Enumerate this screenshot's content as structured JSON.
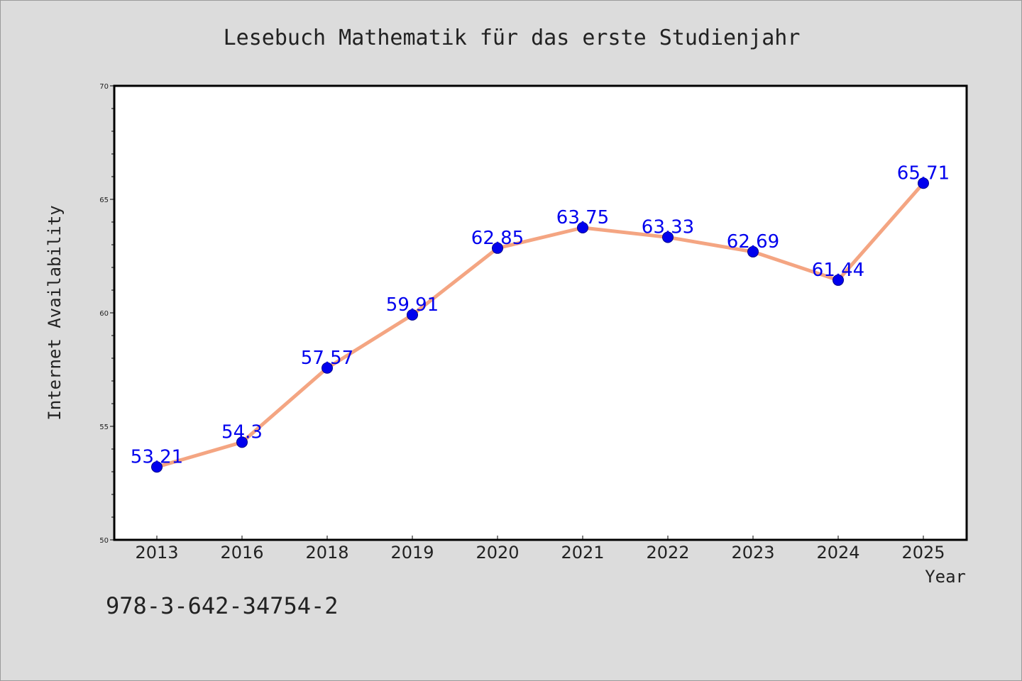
{
  "chart_data": {
    "type": "line",
    "title": "Lesebuch Mathematik für das erste Studienjahr",
    "xlabel": "Year",
    "ylabel": "Internet Availability",
    "categories": [
      "2013",
      "2016",
      "2018",
      "2019",
      "2020",
      "2021",
      "2022",
      "2023",
      "2024",
      "2025"
    ],
    "series": [
      {
        "values": [
          53.21,
          54.3,
          57.57,
          59.91,
          62.85,
          63.75,
          63.33,
          62.69,
          61.44,
          65.71
        ],
        "data_labels": [
          "53.21",
          "54.3",
          "57.57",
          "59.91",
          "62.85",
          "63.75",
          "63.33",
          "62.69",
          "61.44",
          "65.71"
        ]
      }
    ],
    "ylim": [
      50,
      70
    ],
    "yticks": [
      "50",
      "55",
      "60",
      "65",
      "70"
    ],
    "grid": false,
    "legend": "none",
    "colors": {
      "line": "#f4a582",
      "marker": "#0000ee",
      "label": "#0000ee",
      "plot_background": "#ffffff",
      "figure_background": "#dcdcdc"
    }
  },
  "footer": {
    "isbn": "978-3-642-34754-2"
  }
}
